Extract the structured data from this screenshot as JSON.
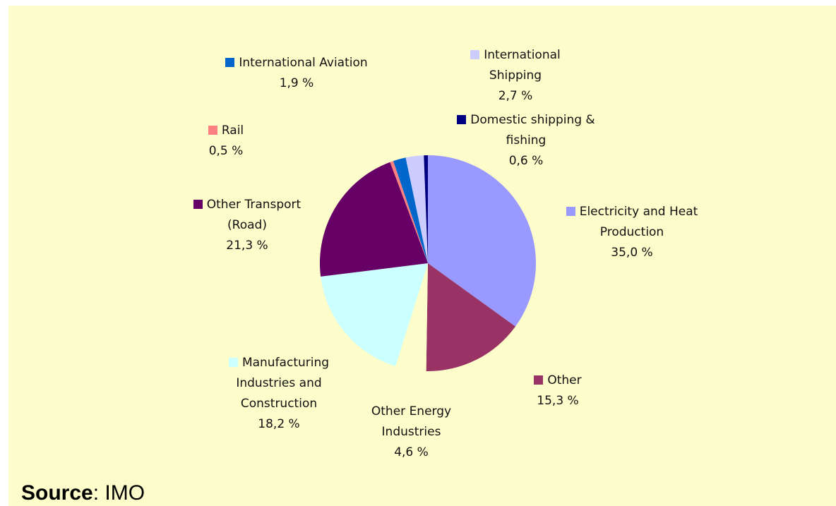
{
  "chart_data": {
    "type": "pie",
    "categories": [
      "Electricity and Heat Production",
      "Other",
      "Other Energy Industries",
      "Manufacturing Industries and Construction",
      "Other Transport (Road)",
      "Rail",
      "International Aviation",
      "International Shipping",
      "Domestic shipping & fishing"
    ],
    "values": [
      35.0,
      15.3,
      4.6,
      18.2,
      21.3,
      0.5,
      1.9,
      2.7,
      0.6
    ],
    "value_labels": [
      "35,0 %",
      "15,3 %",
      "4,6 %",
      "18,2 %",
      "21,3 %",
      "0,5 %",
      "1,9 %",
      "2,7 %",
      "0,6 %"
    ],
    "colors": [
      "#9999ff",
      "#993366",
      "#fdfccb",
      "#ccffff",
      "#660066",
      "#ff8080",
      "#0066cc",
      "#ccccff",
      "#000080"
    ],
    "source_label": "Source",
    "source_text": ": IMO"
  }
}
